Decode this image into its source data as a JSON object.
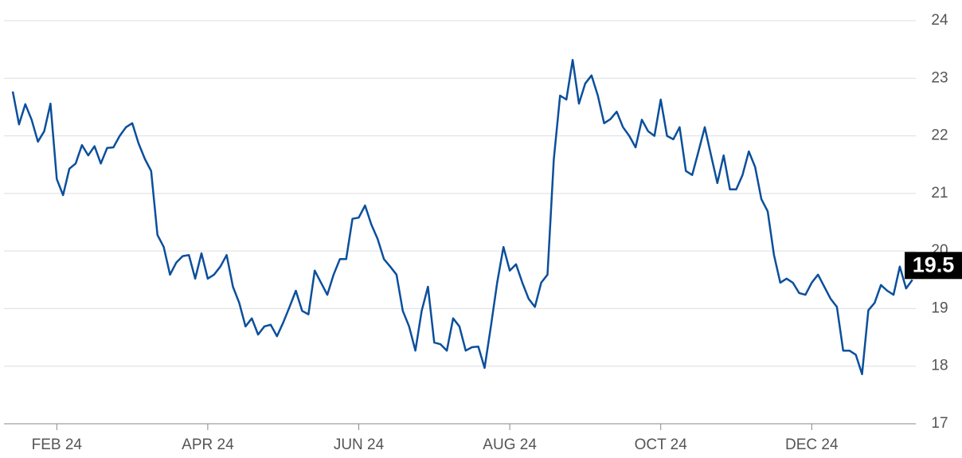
{
  "chart_data": {
    "type": "line",
    "categories": [
      null,
      null,
      null,
      null,
      null,
      null,
      null,
      "FEB 24",
      null,
      null,
      null,
      null,
      null,
      null,
      null,
      null,
      null,
      null,
      null,
      null,
      null,
      null,
      null,
      null,
      null,
      null,
      null,
      null,
      null,
      null,
      null,
      "APR 24",
      null,
      null,
      null,
      null,
      null,
      null,
      null,
      null,
      null,
      null,
      null,
      null,
      null,
      null,
      null,
      null,
      null,
      null,
      null,
      null,
      null,
      null,
      null,
      "JUN 24",
      null,
      null,
      null,
      null,
      null,
      null,
      null,
      null,
      null,
      null,
      null,
      null,
      null,
      null,
      null,
      null,
      null,
      null,
      null,
      null,
      null,
      null,
      null,
      "AUG 24",
      null,
      null,
      null,
      null,
      null,
      null,
      null,
      null,
      null,
      null,
      null,
      null,
      null,
      null,
      null,
      null,
      null,
      null,
      null,
      null,
      null,
      null,
      null,
      "OCT 24",
      null,
      null,
      null,
      null,
      null,
      null,
      null,
      null,
      null,
      null,
      null,
      null,
      null,
      null,
      null,
      null,
      null,
      null,
      null,
      null,
      null,
      null,
      null,
      "DEC 24",
      null,
      null,
      null,
      null,
      null,
      null,
      null,
      null,
      null,
      null,
      null,
      null,
      null,
      null,
      null,
      null
    ],
    "series": [
      {
        "color": "#0b4f9c",
        "values": [
          22.77,
          22.2,
          22.55,
          22.28,
          21.9,
          22.08,
          22.56,
          21.25,
          20.97,
          21.43,
          21.52,
          21.84,
          21.66,
          21.82,
          21.52,
          21.79,
          21.8,
          22.0,
          22.15,
          22.22,
          21.87,
          21.6,
          21.39,
          20.28,
          20.07,
          19.59,
          19.8,
          19.91,
          19.93,
          19.52,
          19.96,
          19.52,
          19.59,
          19.73,
          19.93,
          19.38,
          19.1,
          18.69,
          18.83,
          18.55,
          18.69,
          18.72,
          18.52,
          18.76,
          19.03,
          19.31,
          18.96,
          18.9,
          19.66,
          19.45,
          19.24,
          19.59,
          19.86,
          19.86,
          20.56,
          20.58,
          20.79,
          20.46,
          20.21,
          19.86,
          19.73,
          19.59,
          18.96,
          18.69,
          18.27,
          18.96,
          19.38,
          18.41,
          18.38,
          18.27,
          18.83,
          18.69,
          18.27,
          18.33,
          18.34,
          17.97,
          18.69,
          19.45,
          20.07,
          19.66,
          19.77,
          19.45,
          19.17,
          19.03,
          19.45,
          19.59,
          21.59,
          22.7,
          22.63,
          23.32,
          22.56,
          22.91,
          23.05,
          22.7,
          22.22,
          22.29,
          22.42,
          22.15,
          22.0,
          21.8,
          22.28,
          22.08,
          22.0,
          22.63,
          22.0,
          21.94,
          22.15,
          21.39,
          21.32,
          21.73,
          22.15,
          21.66,
          21.18,
          21.66,
          21.07,
          21.07,
          21.32,
          21.73,
          21.46,
          20.9,
          20.69,
          19.93,
          19.45,
          19.52,
          19.45,
          19.27,
          19.24,
          19.45,
          19.59,
          19.38,
          19.17,
          19.03,
          18.27,
          18.27,
          18.2,
          17.86,
          18.97,
          19.1,
          19.41,
          19.31,
          19.24,
          19.73,
          19.35,
          19.5
        ]
      }
    ],
    "last_value": 19.5,
    "ylim": [
      17,
      24
    ],
    "yticks": [
      17,
      18,
      19,
      20,
      21,
      22,
      23,
      24
    ],
    "grid": true
  }
}
